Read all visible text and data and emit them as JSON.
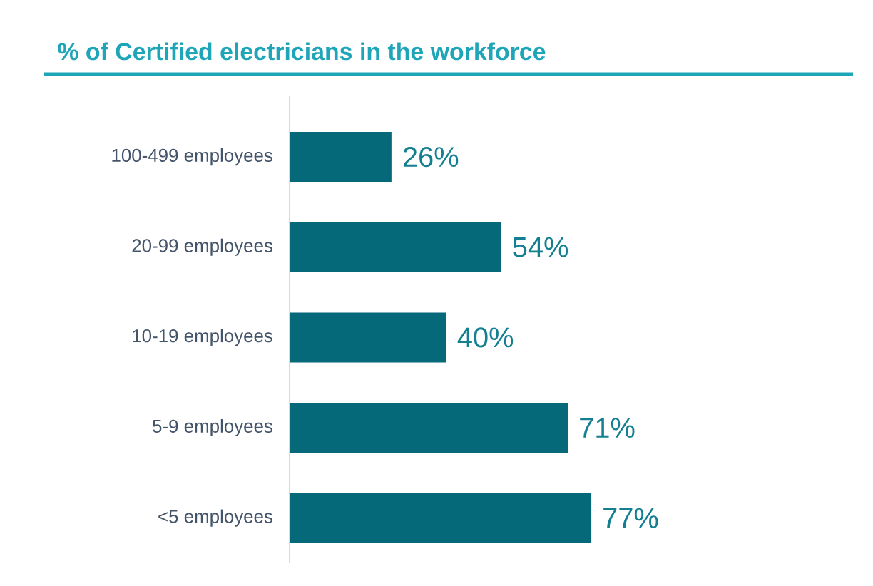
{
  "chart_data": {
    "type": "bar",
    "orientation": "horizontal",
    "title": "% of Certified electricians in the workforce",
    "categories": [
      "100-499 employees",
      "20-99 employees",
      "10-19 employees",
      "5-9 employees",
      "<5 employees"
    ],
    "values": [
      26,
      54,
      40,
      71,
      77
    ],
    "value_labels": [
      "26%",
      "54%",
      "40%",
      "71%",
      "77%"
    ],
    "color": "#06697a"
  }
}
